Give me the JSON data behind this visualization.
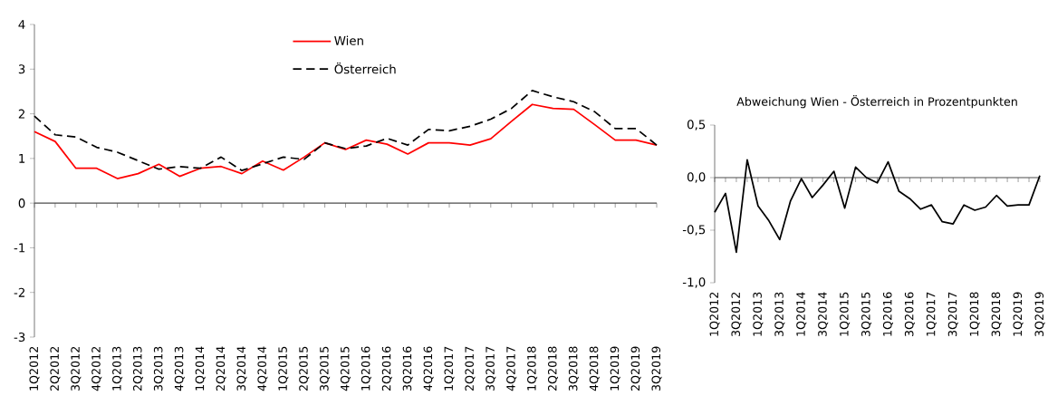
{
  "chart_data": [
    {
      "type": "line",
      "categories": [
        "1Q2012",
        "2Q2012",
        "3Q2012",
        "4Q2012",
        "1Q2013",
        "2Q2013",
        "3Q2013",
        "4Q2013",
        "1Q2014",
        "2Q2014",
        "3Q2014",
        "4Q2014",
        "1Q2015",
        "2Q2015",
        "3Q2015",
        "4Q2015",
        "1Q2016",
        "2Q2016",
        "3Q2016",
        "4Q2016",
        "1Q2017",
        "2Q2017",
        "3Q2017",
        "4Q2017",
        "1Q2018",
        "2Q2018",
        "3Q2018",
        "4Q2018",
        "1Q2019",
        "2Q2019",
        "3Q2019"
      ],
      "series": [
        {
          "name": "Wien",
          "color": "#ff0000",
          "line_style": "solid",
          "values": [
            1.6,
            1.38,
            0.78,
            0.78,
            0.55,
            0.66,
            0.87,
            0.6,
            0.78,
            0.82,
            0.66,
            0.94,
            0.74,
            1.03,
            1.35,
            1.2,
            1.41,
            1.32,
            1.1,
            1.35,
            1.35,
            1.3,
            1.44,
            1.83,
            2.21,
            2.12,
            2.1,
            1.76,
            1.41,
            1.41,
            1.3
          ]
        },
        {
          "name": "Österreich",
          "color": "#000000",
          "line_style": "dashed",
          "values": [
            1.95,
            1.53,
            1.48,
            1.25,
            1.14,
            0.95,
            0.76,
            0.82,
            0.78,
            1.03,
            0.73,
            0.88,
            1.03,
            0.98,
            1.35,
            1.22,
            1.28,
            1.45,
            1.3,
            1.65,
            1.62,
            1.72,
            1.88,
            2.12,
            2.52,
            2.38,
            2.27,
            2.05,
            1.67,
            1.67,
            1.3
          ]
        }
      ],
      "ylim": [
        -3,
        4
      ],
      "yticks": [
        -3,
        -2,
        -1,
        0,
        1,
        2,
        3,
        4
      ],
      "legend": "top",
      "marker": "none"
    },
    {
      "type": "line",
      "title": "Abweichung Wien - Österreich in Prozentpunkten",
      "categories": [
        "1Q2012",
        null,
        "3Q2012",
        null,
        "1Q2013",
        null,
        "3Q2013",
        null,
        "1Q2014",
        null,
        "3Q2014",
        null,
        "1Q2015",
        null,
        "3Q2015",
        null,
        "1Q2016",
        null,
        "3Q2016",
        null,
        "1Q2017",
        null,
        "3Q2017",
        null,
        "1Q2018",
        null,
        "3Q2018",
        null,
        "1Q2019",
        null,
        "3Q2019"
      ],
      "series": [
        {
          "color": "#000000",
          "line_style": "solid",
          "values": [
            -0.33,
            -0.15,
            -0.71,
            0.17,
            -0.27,
            -0.41,
            -0.59,
            -0.22,
            -0.01,
            -0.19,
            -0.07,
            0.06,
            -0.29,
            0.1,
            0.0,
            -0.05,
            0.15,
            -0.13,
            -0.2,
            -0.3,
            -0.26,
            -0.42,
            -0.44,
            -0.26,
            -0.31,
            -0.28,
            -0.17,
            -0.27,
            -0.26,
            -0.26,
            0.02
          ]
        }
      ],
      "ylim": [
        -1,
        0.5
      ],
      "yticks": [
        {
          "value": -1,
          "label": "-1,0"
        },
        {
          "value": -0.5,
          "label": "-0,5"
        },
        {
          "value": 0,
          "label": "0,0"
        },
        {
          "value": 0.5,
          "label": "0,5"
        }
      ],
      "legend": false,
      "marker": "none"
    }
  ]
}
